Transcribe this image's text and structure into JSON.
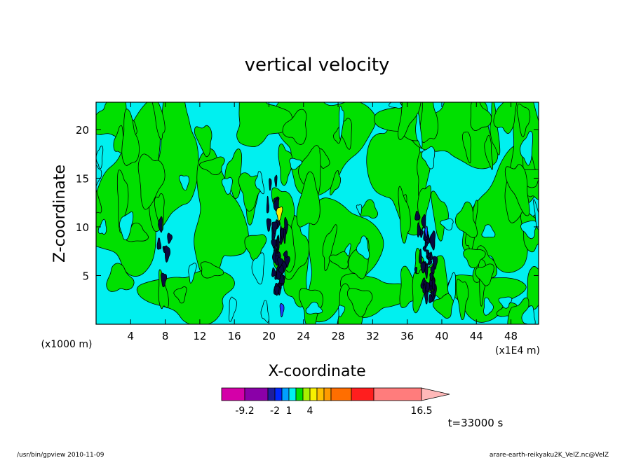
{
  "chart_data": {
    "type": "heatmap",
    "title": "vertical velocity",
    "xlabel": "X-coordinate",
    "ylabel": "Z-coordinate",
    "x_unit_left": "(x1000 m)",
    "x_unit_right": "(x1E4 m)",
    "xlim": [
      0,
      51.2
    ],
    "ylim": [
      0,
      22.8
    ],
    "x_ticks": [
      4,
      8,
      12,
      16,
      20,
      24,
      28,
      32,
      36,
      40,
      44,
      48
    ],
    "y_ticks": [
      5,
      10,
      15,
      20
    ],
    "colorbar": {
      "colors": [
        "#d400a8",
        "#8a00a8",
        "#1e1e9c",
        "#0028ff",
        "#00a0ff",
        "#00f0f0",
        "#00e000",
        "#a8f000",
        "#f8f000",
        "#ffc000",
        "#ff9a00",
        "#ff6e00",
        "#ff1e1e",
        "#ff7c7c",
        "#ffb8b8"
      ],
      "labels": [
        "-9.2",
        "-2",
        "1",
        "4",
        "16.5"
      ]
    },
    "background_color": "#00f0f0",
    "updraft_color": "#00e000",
    "strong_updraft_color": "#f8f000",
    "downdraft_color": "#0a0a40",
    "time_label": "t=33000 s"
  },
  "footer": {
    "left": "/usr/bin/gpview  2010-11-09",
    "right": "arare-earth-reikyaku2K_VelZ.nc@VelZ"
  }
}
